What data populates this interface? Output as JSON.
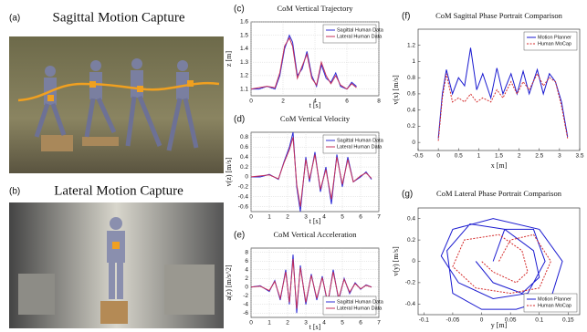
{
  "photos": [
    {
      "label": "(a)",
      "title": "Sagittal Motion Capture"
    },
    {
      "label": "(b)",
      "title": "Lateral Motion Capture"
    }
  ],
  "chart_data": [
    {
      "type": "line",
      "label": "(c)",
      "title": "CoM Vertical Trajectory",
      "xlabel": "t [s]",
      "ylabel": "z [m]",
      "xlim": [
        0,
        8
      ],
      "xticks": [
        0,
        2,
        4,
        6,
        8
      ],
      "ylim": [
        1.05,
        1.6
      ],
      "yticks": [
        1.1,
        1.2,
        1.3,
        1.4,
        1.5,
        1.6
      ],
      "grid": true,
      "legend": "top-right",
      "series": [
        {
          "name": "Sagittal Human Data",
          "color": "#2b2bd6",
          "dashed": false,
          "x": [
            0,
            0.5,
            1,
            1.5,
            1.8,
            2.1,
            2.4,
            2.6,
            2.9,
            3.2,
            3.5,
            3.8,
            4.1,
            4.4,
            4.7,
            5,
            5.3,
            5.6,
            6,
            6.3,
            6.6
          ],
          "values": [
            1.1,
            1.1,
            1.12,
            1.1,
            1.2,
            1.4,
            1.5,
            1.45,
            1.2,
            1.25,
            1.38,
            1.2,
            1.12,
            1.28,
            1.18,
            1.15,
            1.22,
            1.12,
            1.1,
            1.15,
            1.12
          ]
        },
        {
          "name": "Lateral Human Data",
          "color": "#c4305a",
          "dashed": false,
          "x": [
            0,
            0.5,
            1,
            1.5,
            1.8,
            2.1,
            2.4,
            2.6,
            2.9,
            3.2,
            3.5,
            3.8,
            4.1,
            4.4,
            4.7,
            5,
            5.3,
            5.6,
            6,
            6.3,
            6.6
          ],
          "values": [
            1.1,
            1.11,
            1.12,
            1.11,
            1.22,
            1.42,
            1.48,
            1.42,
            1.18,
            1.27,
            1.36,
            1.18,
            1.13,
            1.3,
            1.2,
            1.14,
            1.2,
            1.13,
            1.1,
            1.14,
            1.11
          ]
        }
      ]
    },
    {
      "type": "line",
      "label": "(d)",
      "title": "CoM Vertical Velocity",
      "xlabel": "t [s]",
      "ylabel": "v(z) [m/s]",
      "xlim": [
        0,
        7
      ],
      "xticks": [
        0,
        1,
        2,
        3,
        4,
        5,
        6,
        7
      ],
      "ylim": [
        -0.7,
        0.9
      ],
      "yticks": [
        -0.6,
        -0.4,
        -0.2,
        0,
        0.2,
        0.4,
        0.6,
        0.8
      ],
      "grid": true,
      "legend": "top-right",
      "series": [
        {
          "name": "Sagittal Human Data",
          "color": "#2b2bd6",
          "dashed": false,
          "x": [
            0,
            0.5,
            1,
            1.5,
            1.8,
            2.1,
            2.3,
            2.5,
            2.7,
            3,
            3.2,
            3.5,
            3.8,
            4.1,
            4.4,
            4.7,
            5,
            5.3,
            5.6,
            6,
            6.3,
            6.6
          ],
          "values": [
            0,
            0,
            0.05,
            -0.05,
            0.3,
            0.6,
            0.9,
            -0.2,
            -0.7,
            0.4,
            -0.1,
            0.5,
            -0.3,
            0.2,
            -0.55,
            0.45,
            -0.2,
            0.4,
            -0.1,
            0,
            0.1,
            -0.05
          ]
        },
        {
          "name": "Lateral Human Data",
          "color": "#c4305a",
          "dashed": false,
          "x": [
            0,
            0.5,
            1,
            1.5,
            1.8,
            2.1,
            2.3,
            2.5,
            2.7,
            3,
            3.2,
            3.5,
            3.8,
            4.1,
            4.4,
            4.7,
            5,
            5.3,
            5.6,
            6,
            6.3,
            6.6
          ],
          "values": [
            0,
            0.02,
            0.04,
            -0.04,
            0.28,
            0.55,
            0.8,
            -0.15,
            -0.6,
            0.35,
            -0.05,
            0.45,
            -0.25,
            0.15,
            -0.45,
            0.4,
            -0.15,
            0.35,
            -0.1,
            0.02,
            0.08,
            -0.03
          ]
        }
      ]
    },
    {
      "type": "line",
      "label": "(e)",
      "title": "CoM Vertical Acceleration",
      "xlabel": "t [s]",
      "ylabel": "a(z) [m/s^2]",
      "xlim": [
        0,
        7
      ],
      "xticks": [
        0,
        1,
        2,
        3,
        4,
        5,
        6,
        7
      ],
      "ylim": [
        -7,
        9
      ],
      "yticks": [
        -6,
        -4,
        -2,
        0,
        2,
        4,
        6,
        8
      ],
      "grid": true,
      "legend": "bottom-right",
      "series": [
        {
          "name": "Sagittal Human Data",
          "color": "#2b2bd6",
          "dashed": false,
          "x": [
            0,
            0.5,
            1,
            1.3,
            1.6,
            1.9,
            2.1,
            2.3,
            2.5,
            2.7,
            3,
            3.3,
            3.6,
            3.9,
            4.2,
            4.5,
            4.8,
            5.1,
            5.4,
            5.7,
            6,
            6.3,
            6.6
          ],
          "values": [
            0,
            0.3,
            -1,
            1.5,
            -3,
            4,
            -4,
            7.5,
            -6,
            5,
            -4,
            3,
            -3,
            2.5,
            -4,
            4,
            -3,
            2,
            -1.5,
            1,
            -0.5,
            0.5,
            0
          ]
        },
        {
          "name": "Lateral Human Data",
          "color": "#c4305a",
          "dashed": false,
          "x": [
            0,
            0.5,
            1,
            1.3,
            1.6,
            1.9,
            2.1,
            2.3,
            2.5,
            2.7,
            3,
            3.3,
            3.6,
            3.9,
            4.2,
            4.5,
            4.8,
            5.1,
            5.4,
            5.7,
            6,
            6.3,
            6.6
          ],
          "values": [
            0,
            0.2,
            -0.8,
            1.3,
            -2.6,
            3.5,
            -3.5,
            6.5,
            -5,
            4.5,
            -3.5,
            2.7,
            -2.6,
            2.2,
            -3.5,
            3.5,
            -2.6,
            1.8,
            -1.2,
            0.8,
            -0.4,
            0.4,
            0
          ]
        }
      ]
    },
    {
      "type": "line",
      "label": "(f)",
      "title": "CoM Sagittal Phase Portrait Comparison",
      "xlabel": "x [m]",
      "ylabel": "v(x) [m/s]",
      "xlim": [
        -0.5,
        3.5
      ],
      "xticks": [
        -0.5,
        0,
        0.5,
        1,
        1.5,
        2,
        2.5,
        3,
        3.5
      ],
      "ylim": [
        -0.1,
        1.4
      ],
      "yticks": [
        0,
        0.2,
        0.4,
        0.6,
        0.8,
        1,
        1.2
      ],
      "grid": false,
      "legend": "top-right",
      "series": [
        {
          "name": "Motion Planner",
          "color": "#1a1ad0",
          "dashed": false,
          "x": [
            0,
            0.1,
            0.2,
            0.35,
            0.5,
            0.65,
            0.8,
            0.95,
            1.1,
            1.3,
            1.45,
            1.6,
            1.8,
            1.95,
            2.1,
            2.25,
            2.45,
            2.6,
            2.75,
            2.9,
            3.05,
            3.2
          ],
          "values": [
            0.05,
            0.6,
            0.9,
            0.6,
            0.8,
            0.7,
            1.17,
            0.65,
            0.85,
            0.55,
            0.92,
            0.6,
            0.85,
            0.6,
            0.88,
            0.6,
            0.9,
            0.6,
            0.85,
            0.75,
            0.5,
            0.07
          ]
        },
        {
          "name": "Human MoCap",
          "color": "#d42a2a",
          "dashed": true,
          "x": [
            0,
            0.1,
            0.2,
            0.35,
            0.5,
            0.65,
            0.8,
            0.95,
            1.1,
            1.3,
            1.45,
            1.6,
            1.8,
            1.95,
            2.1,
            2.25,
            2.45,
            2.6,
            2.75,
            2.9,
            3.05,
            3.2
          ],
          "values": [
            0.02,
            0.55,
            0.85,
            0.5,
            0.55,
            0.5,
            0.6,
            0.5,
            0.55,
            0.5,
            0.65,
            0.55,
            0.75,
            0.6,
            0.75,
            0.65,
            0.85,
            0.7,
            0.8,
            0.75,
            0.45,
            0.05
          ]
        }
      ]
    },
    {
      "type": "line",
      "label": "(g)",
      "title": "CoM Lateral Phase Portrait Comparison",
      "xlabel": "y [m]",
      "ylabel": "v(y) [m/s]",
      "xlim": [
        -0.11,
        0.17
      ],
      "xticks": [
        -0.1,
        -0.05,
        0,
        0.05,
        0.1,
        0.15
      ],
      "ylim": [
        -0.5,
        0.5
      ],
      "yticks": [
        -0.4,
        -0.2,
        0,
        0.2,
        0.4
      ],
      "grid": false,
      "legend": "bottom-right",
      "series": [
        {
          "name": "Motion Planner",
          "color": "#1a1ad0",
          "dashed": false,
          "x": [
            0.02,
            0.04,
            0.09,
            0.11,
            0.08,
            0.02,
            -0.04,
            -0.07,
            -0.05,
            0.02,
            0.1,
            0.14,
            0.12,
            0.06,
            0,
            -0.05,
            -0.06,
            -0.02,
            0.04,
            0.09,
            0.1,
            0.07,
            0.02,
            -0.01
          ],
          "values": [
            0,
            0.3,
            0.3,
            0,
            -0.3,
            -0.35,
            -0.2,
            0.05,
            0.3,
            0.4,
            0.3,
            0,
            -0.35,
            -0.45,
            -0.45,
            -0.3,
            0.1,
            0.35,
            0.3,
            0.1,
            -0.15,
            -0.3,
            -0.2,
            0
          ]
        },
        {
          "name": "Human MoCap",
          "color": "#d42a2a",
          "dashed": true,
          "x": [
            0.03,
            0.05,
            0.09,
            0.12,
            0.1,
            0.05,
            -0.01,
            -0.05,
            -0.03,
            0.03,
            0.07,
            0.08,
            0.06,
            0.02,
            0
          ],
          "values": [
            0,
            0.2,
            0.25,
            0,
            -0.25,
            -0.3,
            -0.25,
            -0.05,
            0.2,
            0.25,
            0.1,
            -0.1,
            -0.2,
            -0.1,
            0
          ]
        }
      ]
    }
  ]
}
